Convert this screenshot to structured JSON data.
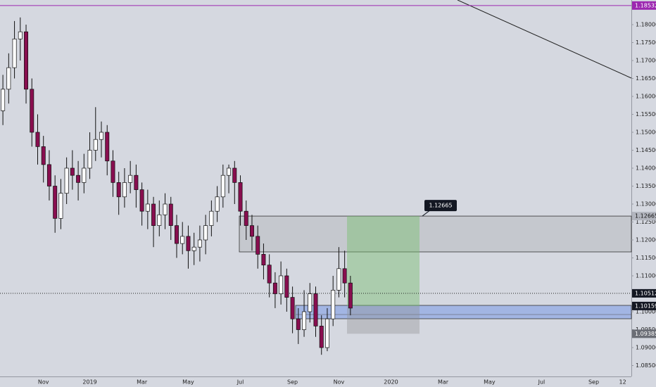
{
  "chart_data": {
    "type": "candlestick",
    "categories": [
      null,
      null,
      null,
      null,
      null,
      null,
      null,
      "Nov",
      null,
      null,
      null,
      null,
      null,
      null,
      null,
      "2019",
      null,
      null,
      null,
      null,
      null,
      null,
      null,
      null,
      "Mar",
      null,
      null,
      null,
      null,
      null,
      null,
      null,
      "May",
      null,
      null,
      null,
      null,
      null,
      null,
      null,
      null,
      "Jul",
      null,
      null,
      null,
      null,
      null,
      null,
      null,
      null,
      "Sep",
      null,
      null,
      null,
      null,
      null,
      null,
      null,
      "Nov",
      null,
      null,
      null,
      null,
      null,
      null,
      null,
      null,
      "2020",
      null,
      null,
      null,
      null,
      null,
      null,
      null,
      null,
      "Mar",
      null,
      null,
      null,
      null,
      null,
      null,
      null,
      "May",
      null,
      null,
      null,
      null,
      null,
      null,
      null,
      null,
      "Jul",
      null,
      null,
      null,
      null,
      null,
      null,
      null,
      null,
      "Sep",
      null,
      null,
      null,
      null,
      "12",
      null
    ],
    "open": [
      1.156,
      1.162,
      1.168,
      1.176,
      1.178,
      1.162,
      1.15,
      1.146,
      1.141,
      1.135,
      1.126,
      1.133,
      1.14,
      1.138,
      1.136,
      1.14,
      1.145,
      1.148,
      1.15,
      1.142,
      1.136,
      1.132,
      1.136,
      1.138,
      1.134,
      1.128,
      1.13,
      1.124,
      1.127,
      1.13,
      1.124,
      1.119,
      1.121,
      1.117,
      1.118,
      1.12,
      1.124,
      1.128,
      1.132,
      1.138,
      1.14,
      1.136,
      1.128,
      1.124,
      1.121,
      1.116,
      1.113,
      1.108,
      1.105,
      1.11,
      1.104,
      1.098,
      1.095,
      1.1,
      1.105,
      1.096,
      1.09,
      1.098,
      1.106,
      1.112,
      1.108,
      null,
      null,
      null,
      null,
      null,
      null,
      null,
      null,
      null,
      null,
      null,
      null,
      null,
      null,
      null,
      null,
      null,
      null,
      null,
      null,
      null,
      null,
      null,
      null,
      null,
      null,
      null,
      null,
      null,
      null,
      null,
      null,
      null,
      null,
      null,
      null,
      null,
      null,
      null,
      null,
      null,
      null,
      null,
      null,
      null,
      null,
      null,
      null
    ],
    "high": [
      1.166,
      1.172,
      1.181,
      1.182,
      1.18,
      1.165,
      1.155,
      1.149,
      1.145,
      1.138,
      1.137,
      1.143,
      1.145,
      1.142,
      1.144,
      1.15,
      1.157,
      1.153,
      1.152,
      1.145,
      1.139,
      1.14,
      1.142,
      1.141,
      1.136,
      1.134,
      1.132,
      1.131,
      1.133,
      1.132,
      1.127,
      1.125,
      1.124,
      1.122,
      1.124,
      1.127,
      1.131,
      1.135,
      1.141,
      1.141,
      1.142,
      1.138,
      1.131,
      1.127,
      1.124,
      1.119,
      1.116,
      1.111,
      1.114,
      1.112,
      1.107,
      1.101,
      1.106,
      1.108,
      1.107,
      1.099,
      1.101,
      1.11,
      1.118,
      1.117,
      1.11,
      null,
      null,
      null,
      null,
      null,
      null,
      null,
      null,
      null,
      null,
      null,
      null,
      null,
      null,
      null,
      null,
      null,
      null,
      null,
      null,
      null,
      null,
      null,
      null,
      null,
      null,
      null,
      null,
      null,
      null,
      null,
      null,
      null,
      null,
      null,
      null,
      null,
      null,
      null,
      null,
      null,
      null,
      null,
      null,
      null,
      null,
      null,
      null
    ],
    "low": [
      1.152,
      1.158,
      1.165,
      1.17,
      1.158,
      1.146,
      1.141,
      1.136,
      1.131,
      1.122,
      1.123,
      1.13,
      1.134,
      1.131,
      1.133,
      1.137,
      1.142,
      1.143,
      1.138,
      1.132,
      1.127,
      1.129,
      1.133,
      1.129,
      1.124,
      1.123,
      1.118,
      1.121,
      1.123,
      1.12,
      1.115,
      1.116,
      1.112,
      1.113,
      1.114,
      1.116,
      1.121,
      1.125,
      1.129,
      1.133,
      1.13,
      1.124,
      1.12,
      1.117,
      1.112,
      1.109,
      1.104,
      1.101,
      1.102,
      1.1,
      1.094,
      1.091,
      1.093,
      1.097,
      1.093,
      1.088,
      1.089,
      1.096,
      1.104,
      1.104,
      1.099,
      null,
      null,
      null,
      null,
      null,
      null,
      null,
      null,
      null,
      null,
      null,
      null,
      null,
      null,
      null,
      null,
      null,
      null,
      null,
      null,
      null,
      null,
      null,
      null,
      null,
      null,
      null,
      null,
      null,
      null,
      null,
      null,
      null,
      null,
      null,
      null,
      null,
      null,
      null,
      null,
      null,
      null,
      null,
      null,
      null,
      null,
      null,
      null
    ],
    "close": [
      1.162,
      1.168,
      1.176,
      1.178,
      1.162,
      1.15,
      1.146,
      1.141,
      1.135,
      1.126,
      1.133,
      1.14,
      1.138,
      1.136,
      1.14,
      1.145,
      1.148,
      1.15,
      1.142,
      1.136,
      1.132,
      1.136,
      1.138,
      1.134,
      1.128,
      1.13,
      1.124,
      1.127,
      1.13,
      1.124,
      1.119,
      1.121,
      1.117,
      1.118,
      1.12,
      1.124,
      1.128,
      1.132,
      1.138,
      1.14,
      1.136,
      1.128,
      1.124,
      1.121,
      1.116,
      1.113,
      1.108,
      1.105,
      1.11,
      1.104,
      1.098,
      1.095,
      1.1,
      1.105,
      1.096,
      1.09,
      1.098,
      1.106,
      1.112,
      1.108,
      1.101,
      null,
      null,
      null,
      null,
      null,
      null,
      null,
      null,
      null,
      null,
      null,
      null,
      null,
      null,
      null,
      null,
      null,
      null,
      null,
      null,
      null,
      null,
      null,
      null,
      null,
      null,
      null,
      null,
      null,
      null,
      null,
      null,
      null,
      null,
      null,
      null,
      null,
      null,
      null,
      null,
      null,
      null,
      null,
      null,
      null,
      null,
      null,
      null
    ],
    "up_color": "#ffffff",
    "down_color": "#880e4f",
    "ylim": [
      1.08196,
      1.18686
    ],
    "yticks": [
      {
        "value": 1.085,
        "label": "1.08500"
      },
      {
        "value": 1.09,
        "label": "1.09000"
      },
      {
        "value": 1.095,
        "label": "1.09500"
      },
      {
        "value": 1.1,
        "label": "1.10000"
      },
      {
        "value": 1.105,
        "label": "1.10500"
      },
      {
        "value": 1.11,
        "label": "1.11000"
      },
      {
        "value": 1.115,
        "label": "1.11500"
      },
      {
        "value": 1.12,
        "label": "1.12000"
      },
      {
        "value": 1.125,
        "label": "1.12500"
      },
      {
        "value": 1.13,
        "label": "1.13000"
      },
      {
        "value": 1.135,
        "label": "1.13500"
      },
      {
        "value": 1.14,
        "label": "1.14000"
      },
      {
        "value": 1.145,
        "label": "1.14500"
      },
      {
        "value": 1.15,
        "label": "1.15000"
      },
      {
        "value": 1.155,
        "label": "1.15500"
      },
      {
        "value": 1.16,
        "label": "1.16000"
      },
      {
        "value": 1.165,
        "label": "1.16500"
      },
      {
        "value": 1.17,
        "label": "1.17000"
      },
      {
        "value": 1.175,
        "label": "1.17500"
      },
      {
        "value": 1.18,
        "label": "1.18000"
      }
    ],
    "levels": {
      "alert": 1.18532,
      "target": 1.12665,
      "last": 1.10512,
      "entry": 1.10159,
      "stop": 1.09385
    }
  }
}
